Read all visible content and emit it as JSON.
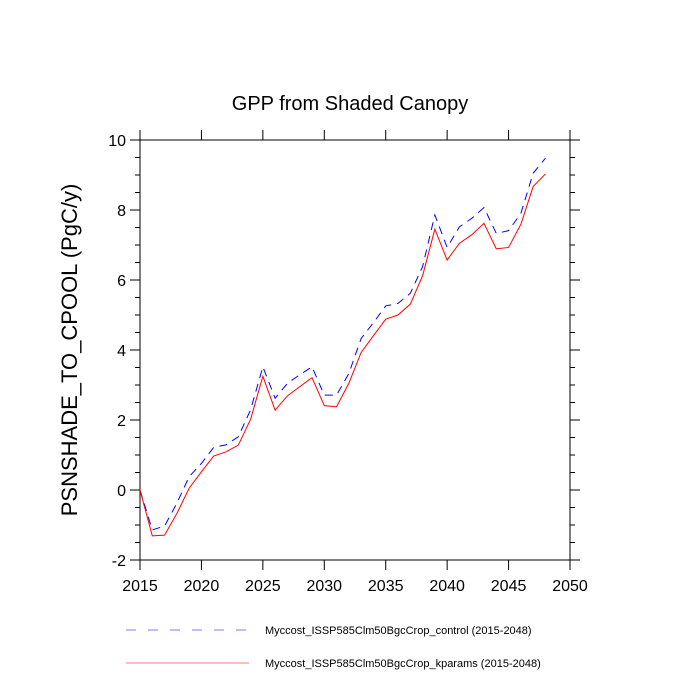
{
  "chart_data": {
    "type": "line",
    "title": "GPP from Shaded Canopy",
    "xlabel": "",
    "ylabel": "PSNSHADE_TO_CPOOL  (PgC/y)",
    "xlim": [
      2015,
      2050
    ],
    "ylim": [
      -2,
      10
    ],
    "grid": false,
    "legend_position": "bottom",
    "x_ticks": [
      2015,
      2020,
      2025,
      2030,
      2035,
      2040,
      2045,
      2050
    ],
    "x_tick_labels": [
      "2015",
      "2020",
      "2025",
      "2030",
      "2035",
      "2040",
      "2045",
      "2050"
    ],
    "y_ticks": [
      -2,
      0,
      2,
      4,
      6,
      8,
      10
    ],
    "y_tick_labels": [
      "-2",
      "0",
      "2",
      "4",
      "6",
      "8",
      "10"
    ],
    "x": [
      2015,
      2016,
      2017,
      2018,
      2019,
      2020,
      2021,
      2022,
      2023,
      2024,
      2025,
      2026,
      2027,
      2028,
      2029,
      2030,
      2031,
      2032,
      2033,
      2034,
      2035,
      2036,
      2037,
      2038,
      2039,
      2040,
      2041,
      2042,
      2043,
      2044,
      2045,
      2046,
      2047,
      2048
    ],
    "series": [
      {
        "name": "Myccost_ISSP585Clm50BgcCrop_control (2015-2048)",
        "color": "#0000ff",
        "style": "dashed",
        "values": [
          0.0,
          -1.14,
          -1.03,
          -0.38,
          0.38,
          0.76,
          1.22,
          1.29,
          1.52,
          2.29,
          3.52,
          2.62,
          3.05,
          3.29,
          3.52,
          2.71,
          2.71,
          3.33,
          4.33,
          4.78,
          5.26,
          5.33,
          5.62,
          6.38,
          7.86,
          6.93,
          7.52,
          7.76,
          8.07,
          7.33,
          7.41,
          7.9,
          9.05,
          9.48
        ]
      },
      {
        "name": "Myccost_ISSP585Clm50BgcCrop_kparams (2015-2048)",
        "color": "#ff0000",
        "style": "solid",
        "values": [
          0.0,
          -1.31,
          -1.29,
          -0.67,
          0.05,
          0.52,
          0.97,
          1.09,
          1.28,
          2.02,
          3.25,
          2.28,
          2.69,
          2.95,
          3.21,
          2.41,
          2.38,
          3.05,
          3.93,
          4.41,
          4.88,
          5.0,
          5.31,
          6.12,
          7.45,
          6.57,
          7.05,
          7.29,
          7.62,
          6.89,
          6.93,
          7.59,
          8.67,
          9.03
        ]
      }
    ]
  }
}
